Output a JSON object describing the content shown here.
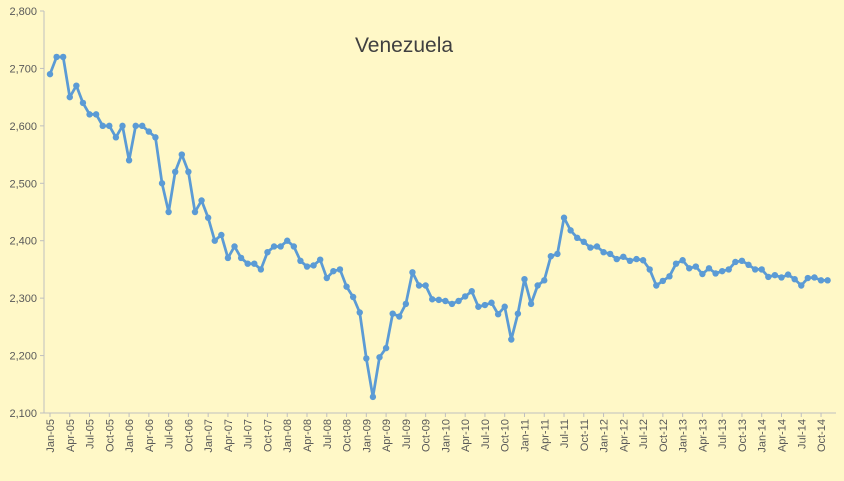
{
  "chart_data": {
    "type": "line",
    "title": "Venezuela",
    "xlabel": "",
    "ylabel": "",
    "ylim": [
      2100,
      2800
    ],
    "yticks": [
      2100,
      2200,
      2300,
      2400,
      2500,
      2600,
      2700,
      2800
    ],
    "ytick_labels": [
      "2,100",
      "2,200",
      "2,300",
      "2,400",
      "2,500",
      "2,600",
      "2,700",
      "2,800"
    ],
    "x_tick_labels": [
      "Jan-05",
      "Apr-05",
      "Jul-05",
      "Oct-05",
      "Jan-06",
      "Apr-06",
      "Jul-06",
      "Oct-06",
      "Jan-07",
      "Apr-07",
      "Jul-07",
      "Oct-07",
      "Jan-08",
      "Apr-08",
      "Jul-08",
      "Oct-08",
      "Jan-09",
      "Apr-09",
      "Jul-09",
      "Oct-09",
      "Jan-10",
      "Apr-10",
      "Jul-10",
      "Oct-10",
      "Jan-11",
      "Apr-11",
      "Jul-11",
      "Oct-11",
      "Jan-12",
      "Apr-12",
      "Jul-12",
      "Oct-12",
      "Jan-13",
      "Apr-13",
      "Jul-13",
      "Oct-13",
      "Jan-14",
      "Apr-14",
      "Jul-14",
      "Oct-14"
    ],
    "grid": false,
    "legend": "none",
    "line_color": "#5B9BD5",
    "background_color": "#FFF8C7",
    "series": [
      {
        "values": [
          2690,
          2720,
          2720,
          2650,
          2670,
          2640,
          2620,
          2620,
          2600,
          2600,
          2580,
          2600,
          2540,
          2600,
          2600,
          2590,
          2580,
          2500,
          2450,
          2520,
          2550,
          2520,
          2450,
          2470,
          2440,
          2400,
          2410,
          2370,
          2390,
          2370,
          2360,
          2360,
          2350,
          2380,
          2390,
          2390,
          2400,
          2390,
          2365,
          2355,
          2357,
          2367,
          2335,
          2347,
          2350,
          2320,
          2302,
          2275,
          2195,
          2128,
          2197,
          2213,
          2273,
          2268,
          2290,
          2345,
          2322,
          2322,
          2298,
          2297,
          2295,
          2290,
          2295,
          2303,
          2312,
          2285,
          2288,
          2292,
          2272,
          2285,
          2228,
          2273,
          2333,
          2290,
          2322,
          2331,
          2373,
          2377,
          2440,
          2418,
          2405,
          2398,
          2388,
          2390,
          2380,
          2377,
          2368,
          2372,
          2365,
          2368,
          2366,
          2350,
          2322,
          2330,
          2338,
          2360,
          2366,
          2352,
          2355,
          2342,
          2352,
          2343,
          2347,
          2350,
          2363,
          2365,
          2358,
          2350,
          2350,
          2337,
          2340,
          2336,
          2341,
          2333,
          2322,
          2335,
          2336,
          2331,
          2331
        ]
      }
    ]
  }
}
